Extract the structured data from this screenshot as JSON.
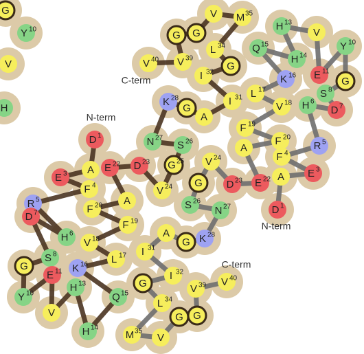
{
  "chains": [
    {
      "n_term": "N-term",
      "c_term": "C-term",
      "residues": [
        {
          "aa": "D",
          "num": "1"
        },
        {
          "aa": "A"
        },
        {
          "aa": "E",
          "num": "3"
        },
        {
          "aa": "F",
          "num": "4"
        },
        {
          "aa": "R",
          "num": "5"
        },
        {
          "aa": "H",
          "num": "6"
        },
        {
          "aa": "D",
          "num": "7"
        },
        {
          "aa": "S",
          "num": "8"
        },
        {
          "aa": "G"
        },
        {
          "aa": "Y",
          "num": "10"
        },
        {
          "aa": "E",
          "num": "11"
        },
        {
          "aa": "V"
        },
        {
          "aa": "H",
          "num": "13"
        },
        {
          "aa": "H",
          "num": "14"
        },
        {
          "aa": "Q",
          "num": "15"
        },
        {
          "aa": "K",
          "num": "16"
        },
        {
          "aa": "L",
          "num": "17"
        },
        {
          "aa": "V",
          "num": "18"
        },
        {
          "aa": "F",
          "num": "19"
        },
        {
          "aa": "F",
          "num": "20"
        },
        {
          "aa": "A"
        },
        {
          "aa": "E",
          "num": "22"
        },
        {
          "aa": "D",
          "num": "23"
        },
        {
          "aa": "V",
          "num": "24"
        },
        {
          "aa": "G",
          "num": "25"
        },
        {
          "aa": "S",
          "num": "26"
        },
        {
          "aa": "N",
          "num": "27"
        },
        {
          "aa": "K",
          "num": "28"
        },
        {
          "aa": "G"
        },
        {
          "aa": "A"
        },
        {
          "aa": "I",
          "num": "31"
        },
        {
          "aa": "I",
          "num": "32"
        },
        {
          "aa": "G"
        },
        {
          "aa": "L",
          "num": "34"
        },
        {
          "aa": "M",
          "num": "35"
        },
        {
          "aa": "V"
        },
        {
          "aa": "G"
        },
        {
          "aa": "G"
        },
        {
          "aa": "V",
          "num": "39"
        },
        {
          "aa": "V",
          "num": "40"
        }
      ]
    },
    {
      "n_term": "N-term",
      "c_term": "C-term",
      "residues": [
        {
          "aa": "D",
          "num": "1"
        },
        {
          "aa": "A"
        },
        {
          "aa": "E",
          "num": "3"
        },
        {
          "aa": "F",
          "num": "4"
        },
        {
          "aa": "R",
          "num": "5"
        },
        {
          "aa": "H",
          "num": "6"
        },
        {
          "aa": "D",
          "num": "7"
        },
        {
          "aa": "S",
          "num": "8"
        },
        {
          "aa": "G"
        },
        {
          "aa": "Y",
          "num": "10"
        },
        {
          "aa": "E",
          "num": "11"
        },
        {
          "aa": "V"
        },
        {
          "aa": "H",
          "num": "13"
        },
        {
          "aa": "H",
          "num": "14"
        },
        {
          "aa": "Q",
          "num": "15"
        },
        {
          "aa": "K",
          "num": "16"
        },
        {
          "aa": "L",
          "num": "17"
        },
        {
          "aa": "V",
          "num": "18"
        },
        {
          "aa": "F",
          "num": "19"
        },
        {
          "aa": "F",
          "num": "20"
        },
        {
          "aa": "A"
        },
        {
          "aa": "E",
          "num": "22"
        },
        {
          "aa": "D",
          "num": "23"
        },
        {
          "aa": "V",
          "num": "24"
        },
        {
          "aa": "G"
        },
        {
          "aa": "S",
          "num": "26"
        },
        {
          "aa": "N",
          "num": "27"
        },
        {
          "aa": "K",
          "num": "28"
        },
        {
          "aa": "G"
        },
        {
          "aa": "A"
        },
        {
          "aa": "I",
          "num": "31"
        },
        {
          "aa": "I",
          "num": "32"
        },
        {
          "aa": "G"
        },
        {
          "aa": "L",
          "num": "34"
        },
        {
          "aa": "M",
          "num": "35"
        },
        {
          "aa": "V"
        },
        {
          "aa": "G"
        },
        {
          "aa": "G"
        },
        {
          "aa": "V",
          "num": "39"
        },
        {
          "aa": "V",
          "num": "40"
        }
      ]
    },
    {
      "residues": [
        {
          "aa": "G"
        },
        {
          "aa": "Y",
          "num": "10"
        },
        {
          "aa": "V"
        },
        {
          "aa": "H"
        }
      ]
    }
  ]
}
